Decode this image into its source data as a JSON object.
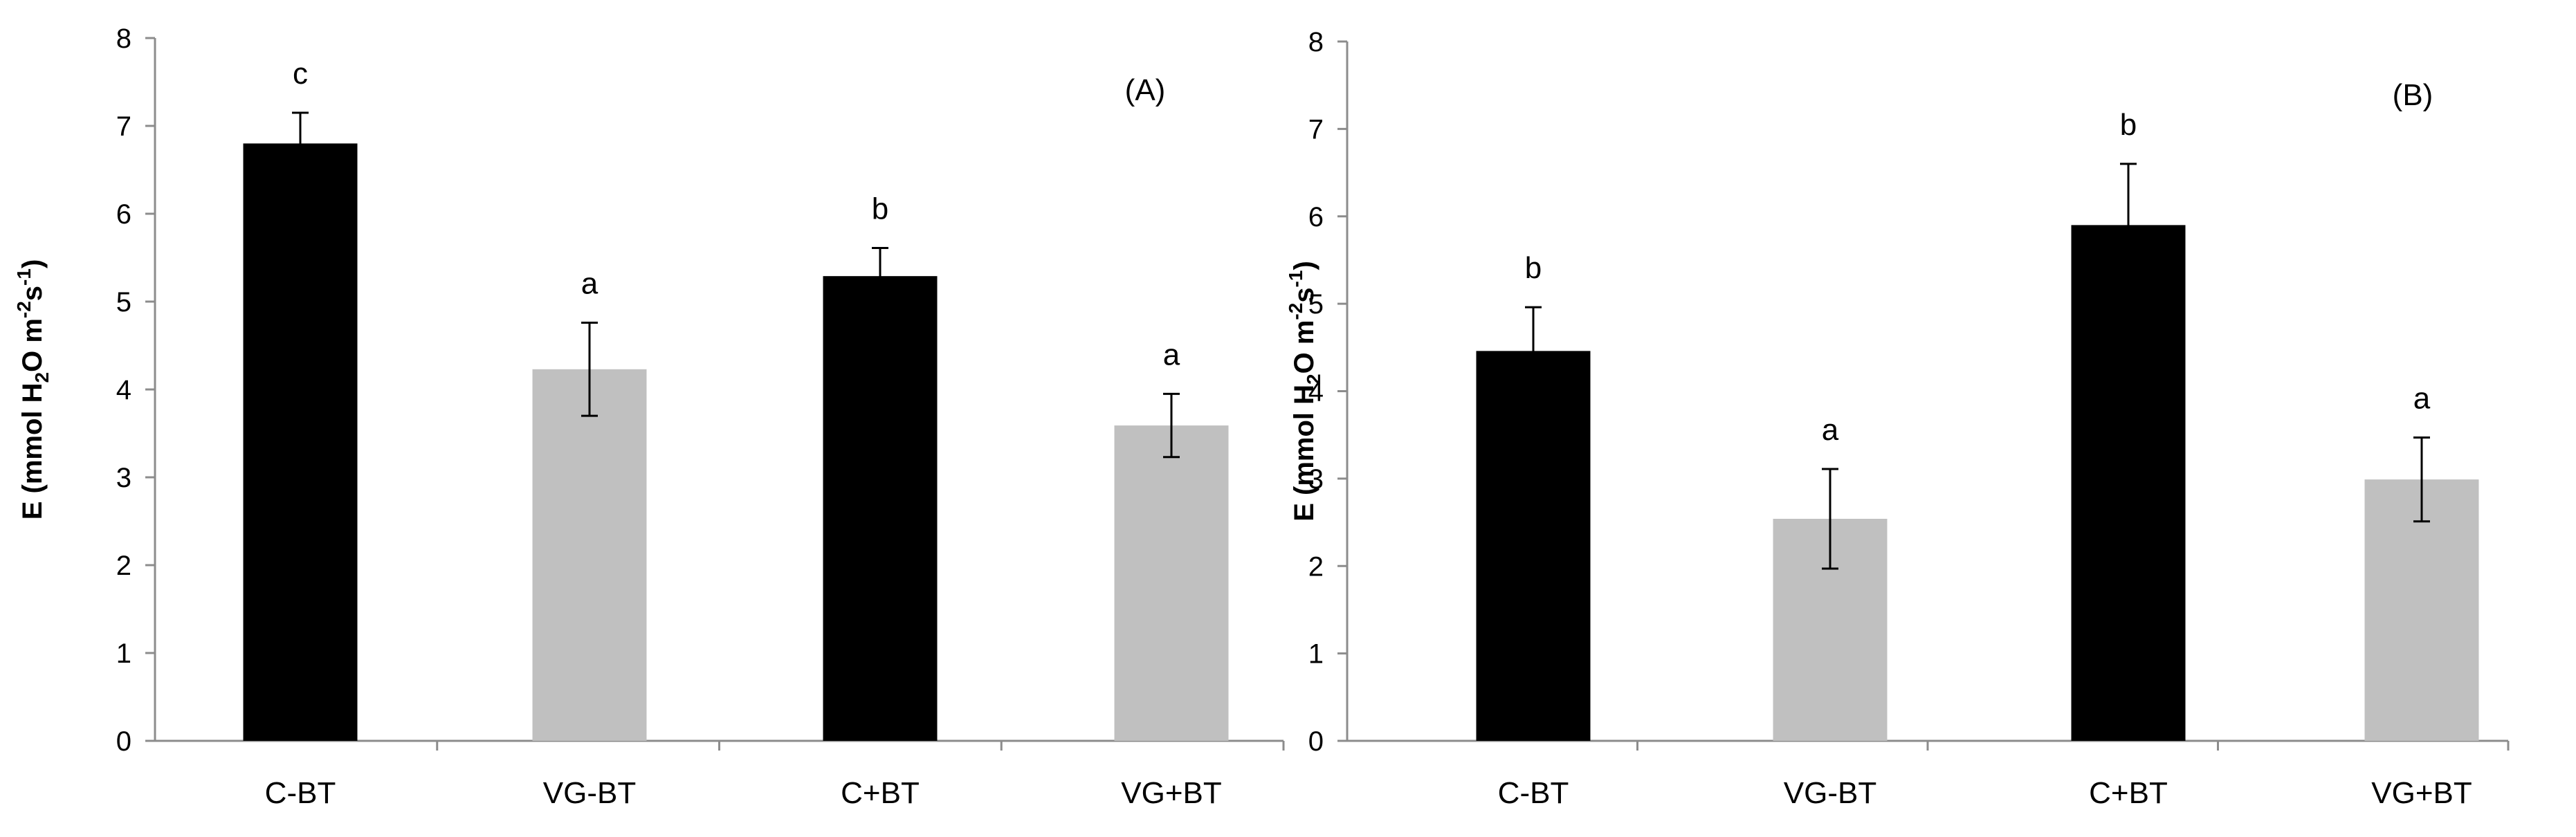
{
  "colors": {
    "dark": "#000000",
    "light": "#c0c0c0",
    "axis": "#8c8c8c",
    "text": "#000000"
  },
  "chart_data": [
    {
      "type": "bar",
      "panel_label": "(A)",
      "ylabel_parts": [
        "E (mmol H",
        "2",
        "O m",
        "-2",
        "s",
        "-1",
        ")"
      ],
      "ylim": [
        0,
        8
      ],
      "yticks": [
        "0",
        "1",
        "2",
        "3",
        "4",
        "5",
        "6",
        "7",
        "8"
      ],
      "categories": [
        "C-BT",
        "VG-BT",
        "C+BT",
        "VG+BT"
      ],
      "values": [
        6.8,
        4.23,
        5.29,
        3.59
      ],
      "errors": [
        0.35,
        0.53,
        0.32,
        0.36
      ],
      "letters": [
        "c",
        "a",
        "b",
        "a"
      ],
      "bar_colors": [
        "dark",
        "light",
        "dark",
        "light"
      ]
    },
    {
      "type": "bar",
      "panel_label": "(B)",
      "ylabel_parts": [
        "E (mmol H",
        "2",
        "O m",
        "-2",
        "s",
        "-1",
        ")"
      ],
      "ylim": [
        0,
        8
      ],
      "yticks": [
        "0",
        "1",
        "2",
        "3",
        "4",
        "5",
        "6",
        "7",
        "8"
      ],
      "categories": [
        "C-BT",
        "VG-BT",
        "C+BT",
        "VG+BT"
      ],
      "values": [
        4.46,
        2.54,
        5.9,
        2.99
      ],
      "errors": [
        0.5,
        0.57,
        0.7,
        0.48
      ],
      "letters": [
        "b",
        "a",
        "b",
        "a"
      ],
      "bar_colors": [
        "dark",
        "light",
        "dark",
        "light"
      ]
    }
  ]
}
